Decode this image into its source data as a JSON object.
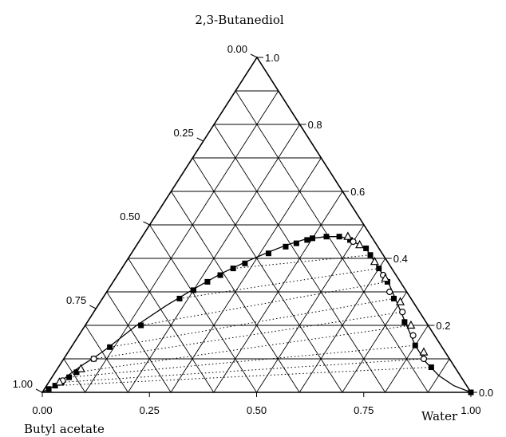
{
  "chart_data": {
    "type": "scatter",
    "subtype": "ternary",
    "vertex_labels": {
      "top": "2,3-Butanediol",
      "left": "Butyl acetate",
      "right": "Water"
    },
    "axes": {
      "bottom_ticks": [
        "0.00",
        "0.25",
        "0.50",
        "0.75",
        "1.00"
      ],
      "left_ticks": [
        "0.00",
        "0.25",
        "0.50",
        "0.75",
        "1.00"
      ],
      "right_ticks": [
        "1.0",
        "0.8",
        "0.6",
        "0.4",
        "0.2",
        "0.0"
      ]
    },
    "grid": true,
    "coordinate_system": "[water, 2,3-butanediol] mass fractions; butyl acetate = 1 - water - butanediol",
    "binodal_curve": [
      [
        0.0,
        0.0
      ],
      [
        0.01,
        0.01
      ],
      [
        0.015,
        0.015
      ],
      [
        0.02,
        0.022
      ],
      [
        0.03,
        0.04
      ],
      [
        0.04,
        0.06
      ],
      [
        0.055,
        0.085
      ],
      [
        0.07,
        0.105
      ],
      [
        0.085,
        0.13
      ],
      [
        0.12,
        0.2
      ],
      [
        0.16,
        0.26
      ],
      [
        0.2,
        0.31
      ],
      [
        0.24,
        0.355
      ],
      [
        0.28,
        0.39
      ],
      [
        0.32,
        0.42
      ],
      [
        0.35,
        0.44
      ],
      [
        0.38,
        0.455
      ],
      [
        0.4,
        0.46
      ],
      [
        0.43,
        0.465
      ],
      [
        0.46,
        0.465
      ],
      [
        0.48,
        0.46
      ],
      [
        0.5,
        0.45
      ],
      [
        0.54,
        0.43
      ],
      [
        0.57,
        0.4
      ],
      [
        0.6,
        0.37
      ],
      [
        0.65,
        0.32
      ],
      [
        0.7,
        0.26
      ],
      [
        0.75,
        0.2
      ],
      [
        0.8,
        0.14
      ],
      [
        0.85,
        0.09
      ],
      [
        0.9,
        0.05
      ],
      [
        0.95,
        0.02
      ],
      [
        1.0,
        0.0
      ]
    ],
    "series": [
      {
        "marker": "filled-square",
        "points": [
          [
            0.01,
            0.01
          ],
          [
            0.02,
            0.02
          ],
          [
            0.03,
            0.03
          ],
          [
            0.04,
            0.045
          ],
          [
            0.05,
            0.06
          ],
          [
            0.07,
            0.1
          ],
          [
            0.09,
            0.135
          ],
          [
            0.13,
            0.2
          ],
          [
            0.18,
            0.28
          ],
          [
            0.2,
            0.305
          ],
          [
            0.22,
            0.33
          ],
          [
            0.24,
            0.35
          ],
          [
            0.26,
            0.37
          ],
          [
            0.28,
            0.385
          ],
          [
            0.32,
            0.415
          ],
          [
            0.35,
            0.435
          ],
          [
            0.37,
            0.445
          ],
          [
            0.39,
            0.455
          ],
          [
            0.4,
            0.46
          ],
          [
            0.43,
            0.465
          ],
          [
            0.46,
            0.465
          ],
          [
            0.49,
            0.455
          ],
          [
            0.54,
            0.43
          ],
          [
            0.56,
            0.41
          ],
          [
            0.6,
            0.37
          ],
          [
            0.64,
            0.33
          ],
          [
            0.68,
            0.28
          ],
          [
            0.74,
            0.21
          ],
          [
            0.8,
            0.14
          ],
          [
            0.87,
            0.075
          ],
          [
            1.0,
            0.0
          ]
        ]
      },
      {
        "marker": "open-circle",
        "points": [
          [
            0.07,
            0.1
          ],
          [
            0.03,
            0.035
          ],
          [
            0.5,
            0.45
          ],
          [
            0.62,
            0.35
          ],
          [
            0.66,
            0.3
          ],
          [
            0.72,
            0.24
          ],
          [
            0.78,
            0.17
          ],
          [
            0.84,
            0.1
          ]
        ]
      },
      {
        "marker": "open-triangle",
        "points": [
          [
            0.055,
            0.07
          ],
          [
            0.025,
            0.03
          ],
          [
            0.48,
            0.465
          ],
          [
            0.52,
            0.44
          ],
          [
            0.58,
            0.39
          ],
          [
            0.63,
            0.34
          ],
          [
            0.7,
            0.27
          ],
          [
            0.76,
            0.2
          ],
          [
            0.83,
            0.12
          ]
        ]
      }
    ],
    "tie_lines": [
      [
        [
          0.02,
          0.02
        ],
        [
          0.87,
          0.075
        ]
      ],
      [
        [
          0.03,
          0.03
        ],
        [
          0.84,
          0.1
        ]
      ],
      [
        [
          0.04,
          0.045
        ],
        [
          0.8,
          0.14
        ]
      ],
      [
        [
          0.05,
          0.06
        ],
        [
          0.76,
          0.2
        ]
      ],
      [
        [
          0.07,
          0.1
        ],
        [
          0.72,
          0.24
        ]
      ],
      [
        [
          0.09,
          0.135
        ],
        [
          0.68,
          0.28
        ]
      ],
      [
        [
          0.13,
          0.2
        ],
        [
          0.64,
          0.33
        ]
      ],
      [
        [
          0.18,
          0.28
        ],
        [
          0.6,
          0.37
        ]
      ],
      [
        [
          0.26,
          0.37
        ],
        [
          0.56,
          0.41
        ]
      ]
    ]
  }
}
